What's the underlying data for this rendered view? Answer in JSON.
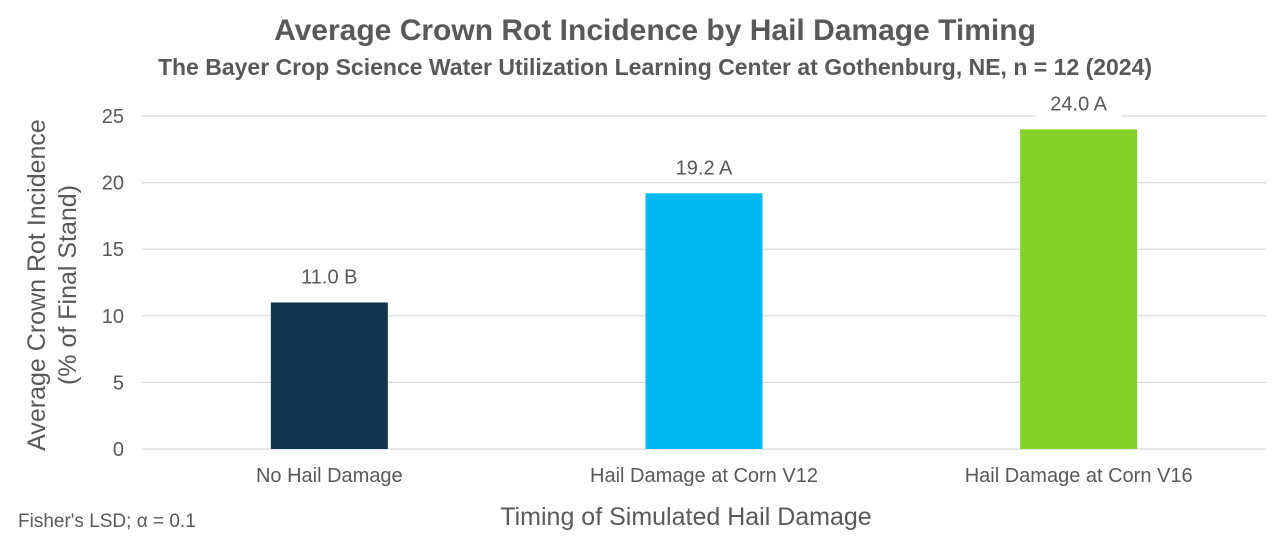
{
  "chart_data": {
    "type": "bar",
    "title": "Average Crown Rot Incidence by Hail Damage Timing",
    "subtitle": "The Bayer Crop Science Water Utilization Learning Center at Gothenburg, NE, n = 12 (2024)",
    "xlabel": "Timing of Simulated Hail Damage",
    "ylabel_line1": "Average Crown Rot Incidence",
    "ylabel_line2": "(% of Final Stand)",
    "categories": [
      "No Hail Damage",
      "Hail Damage at Corn V12",
      "Hail Damage at Corn V16"
    ],
    "values": [
      11.0,
      19.2,
      24.0
    ],
    "data_labels": [
      "11.0 B",
      "19.2 A",
      "24.0 A"
    ],
    "colors": [
      "#12364f",
      "#00b9f2",
      "#84d12a"
    ],
    "ylim": [
      0,
      25
    ],
    "yticks": [
      "0",
      "5",
      "10",
      "15",
      "20",
      "25"
    ],
    "grid": true,
    "footnote": "Fisher's LSD; α = 0.1"
  }
}
